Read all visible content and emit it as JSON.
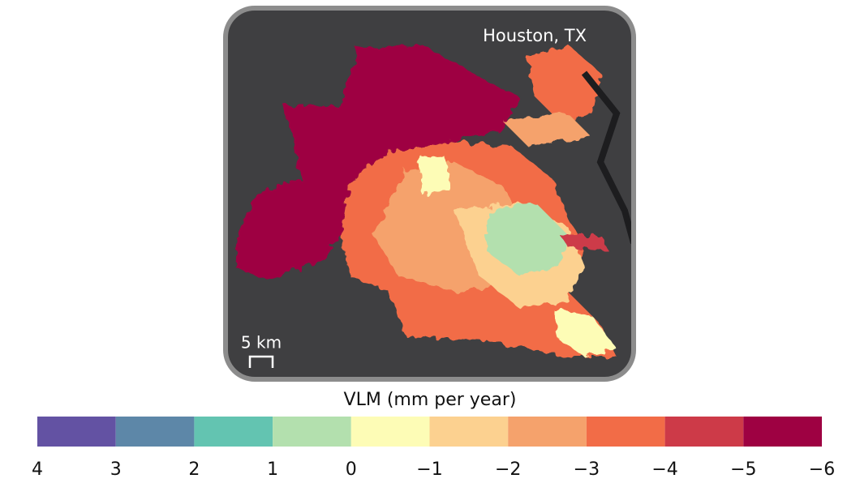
{
  "map": {
    "title": "Houston, TX",
    "scale_bar": "5 km"
  },
  "colorbar": {
    "label": "VLM (mm per year)",
    "lim": [
      4,
      -6
    ],
    "colors": [
      "#6352a3",
      "#5d87a8",
      "#63c4b1",
      "#b3e0ae",
      "#fdfcb6",
      "#fcd190",
      "#f5a26c",
      "#f26c47",
      "#cd3a48",
      "#9e0142"
    ],
    "ticks": [
      4,
      3,
      2,
      1,
      0,
      {
        "value": -1,
        "label": "−1"
      },
      {
        "value": -2,
        "label": "−2"
      },
      {
        "value": -3,
        "label": "−3"
      },
      {
        "value": -4,
        "label": "−4"
      },
      {
        "value": -5,
        "label": "−5"
      },
      {
        "value": -6,
        "label": "−6"
      }
    ]
  }
}
